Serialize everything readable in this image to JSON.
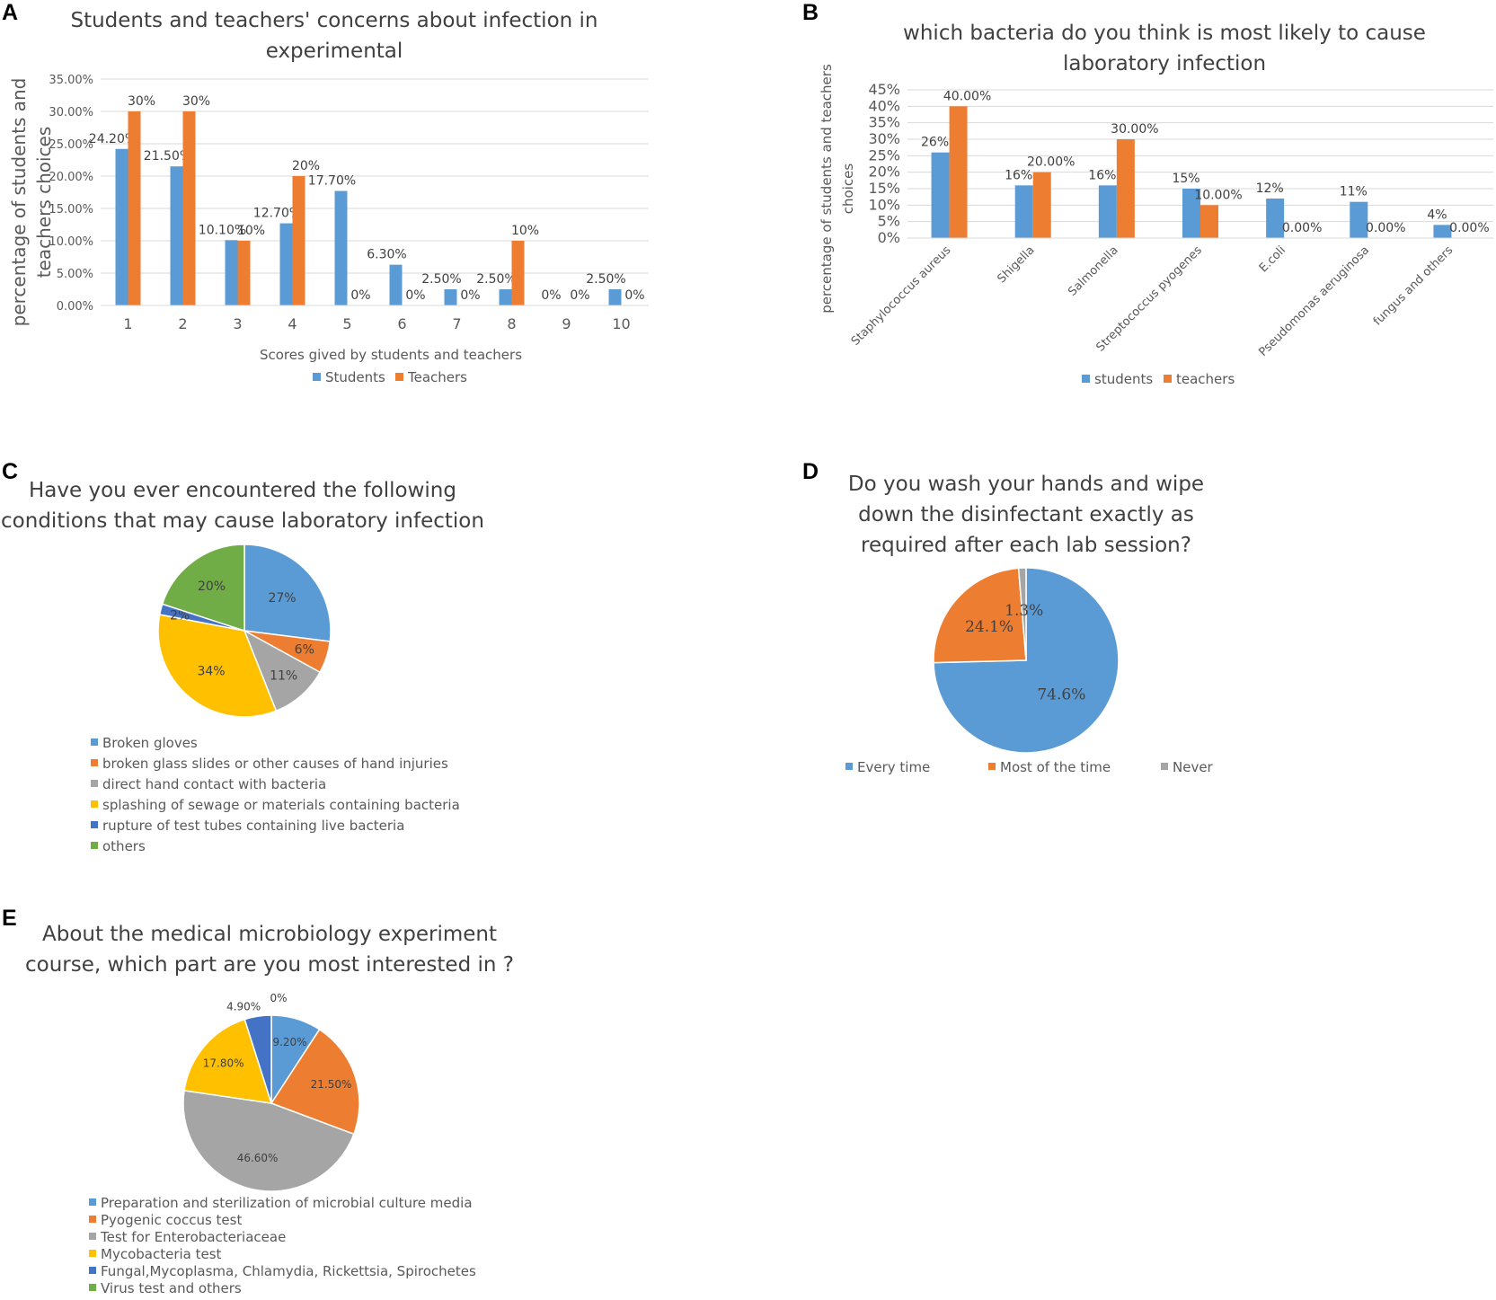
{
  "panels": {
    "a": "A",
    "b": "B",
    "c": "C",
    "d": "D",
    "e": "E"
  },
  "colors": {
    "blue": "#5b9bd5",
    "orange": "#ed7d31",
    "gray": "#a5a5a5",
    "yellow": "#ffc000",
    "darkblue": "#4472c4",
    "green": "#70ad47"
  },
  "chart_data": [
    {
      "id": "A",
      "type": "bar",
      "title_lines": [
        "Students and teachers' concerns about infection in",
        "experimental"
      ],
      "xlabel": "Scores gived by students and teachers",
      "ylabel_lines": [
        "percentage of students and",
        "teachers choices"
      ],
      "ylim": [
        0,
        35
      ],
      "yticks": [
        "0.00%",
        "5.00%",
        "10.00%",
        "15.00%",
        "20.00%",
        "25.00%",
        "30.00%",
        "35.00%"
      ],
      "categories": [
        "1",
        "2",
        "3",
        "4",
        "5",
        "6",
        "7",
        "8",
        "9",
        "10"
      ],
      "series": [
        {
          "name": "Students",
          "values": [
            24.2,
            21.5,
            10.1,
            12.7,
            17.7,
            6.3,
            2.5,
            2.5,
            0,
            2.5
          ],
          "labels": [
            "24.20%",
            "21.50%",
            "10.10%",
            "12.70%",
            "17.70%",
            "6.30%",
            "2.50%",
            "2.50%",
            "0%",
            "2.50%"
          ]
        },
        {
          "name": "Teachers",
          "values": [
            30,
            30,
            10,
            20,
            0,
            0,
            0,
            10,
            0,
            0
          ],
          "labels": [
            "30%",
            "30%",
            "10%",
            "20%",
            "0%",
            "0%",
            "0%",
            "10%",
            "0%",
            "0%"
          ]
        }
      ]
    },
    {
      "id": "B",
      "type": "bar",
      "title_lines": [
        "which bacteria do you think is most likely to cause",
        "laboratory infection"
      ],
      "ylabel_lines": [
        "percentage of students and teachers",
        "choices"
      ],
      "ylim": [
        0,
        45
      ],
      "yticks": [
        "0%",
        "5%",
        "10%",
        "15%",
        "20%",
        "25%",
        "30%",
        "35%",
        "40%",
        "45%"
      ],
      "categories": [
        "Staphylococcus aureus",
        "Shigella",
        "Salmonella",
        "Streptococcus pyogenes",
        "E.coli",
        "Pseudomonas aeruginosa",
        "fungus and others"
      ],
      "series": [
        {
          "name": "students",
          "values": [
            26,
            16,
            16,
            15,
            12,
            11,
            4
          ],
          "labels": [
            "26%",
            "16%",
            "16%",
            "15%",
            "12%",
            "11%",
            "4%"
          ]
        },
        {
          "name": "teachers",
          "values": [
            40,
            20,
            30,
            10,
            0,
            0,
            0
          ],
          "labels": [
            "40.00%",
            "20.00%",
            "30.00%",
            "10.00%",
            "0.00%",
            "0.00%",
            "0.00%"
          ]
        }
      ]
    },
    {
      "id": "C",
      "type": "pie",
      "title_lines": [
        "Have you ever encountered the following",
        "conditions that may cause laboratory infection"
      ],
      "categories": [
        "Broken gloves",
        "broken glass slides or other causes of hand injuries",
        "direct hand contact with bacteria",
        "splashing of sewage or materials containing bacteria",
        "rupture of test tubes containing live bacteria",
        "others"
      ],
      "values": [
        27,
        6,
        11,
        34,
        2,
        20
      ],
      "labels": [
        "27%",
        "6%",
        "11%",
        "34%",
        "2%",
        "20%"
      ]
    },
    {
      "id": "D",
      "type": "pie",
      "title_lines": [
        "Do you wash your hands and wipe",
        "down the disinfectant exactly as",
        "required after each lab session?"
      ],
      "categories": [
        "Every time",
        "Most of the time",
        "Never"
      ],
      "values": [
        74.6,
        24.1,
        1.3
      ],
      "labels": [
        "74.6%",
        "24.1%",
        "1.3%"
      ]
    },
    {
      "id": "E",
      "type": "pie",
      "title_lines": [
        "About the medical microbiology experiment",
        "course, which part are you most interested in ?"
      ],
      "categories": [
        "Preparation and sterilization of microbial culture media",
        "Pyogenic coccus test",
        "Test for Enterobacteriaceae",
        "Mycobacteria test",
        "Fungal,Mycoplasma, Chlamydia, Rickettsia, Spirochetes",
        "Virus test and others"
      ],
      "values": [
        9.2,
        21.5,
        46.6,
        17.8,
        4.9,
        0
      ],
      "labels": [
        "9.20%",
        "21.50%",
        "46.60%",
        "17.80%",
        "4.90%",
        "0%"
      ]
    }
  ]
}
